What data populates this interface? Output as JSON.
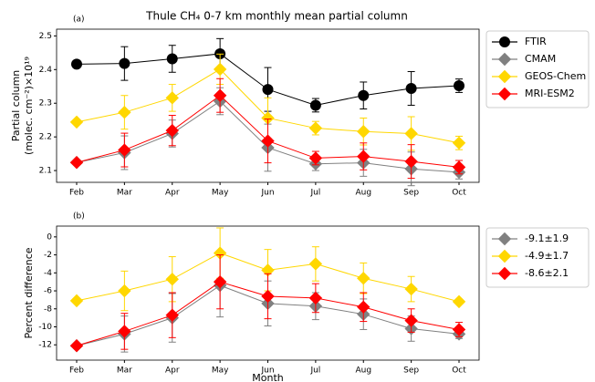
{
  "chart_data": [
    {
      "type": "line",
      "title": "Thule CH₄ 0-7 km monthly mean partial column",
      "panel_label": "(a)",
      "ylabel": [
        "Partial column",
        "(molec. cm⁻²)×10¹⁹"
      ],
      "categories": [
        "Feb",
        "Mar",
        "Apr",
        "May",
        "Jun",
        "Jul",
        "Aug",
        "Sep",
        "Oct"
      ],
      "ylim": [
        2.065,
        2.52
      ],
      "yticks": [
        2.1,
        2.2,
        2.3,
        2.4,
        2.5
      ],
      "legend": "outside right",
      "series": [
        {
          "name": "FTIR",
          "color": "#000000",
          "marker": "circle",
          "values": [
            2.416,
            2.418,
            2.432,
            2.447,
            2.341,
            2.294,
            2.323,
            2.344,
            2.352
          ],
          "errors": [
            0,
            0.05,
            0.04,
            0.045,
            0.065,
            0.02,
            0.04,
            0.05,
            0.02
          ]
        },
        {
          "name": "CMAM",
          "color": "#808080",
          "marker": "diamond",
          "values": [
            2.124,
            2.153,
            2.21,
            2.306,
            2.168,
            2.12,
            2.123,
            2.105,
            2.095
          ],
          "errors": [
            0,
            0.05,
            0.04,
            0.04,
            0.07,
            0.02,
            0.04,
            0.05,
            0.02
          ]
        },
        {
          "name": "GEOS-Chem",
          "color": "#ffd700",
          "marker": "diamond",
          "values": [
            2.244,
            2.273,
            2.316,
            2.401,
            2.256,
            2.226,
            2.216,
            2.21,
            2.182
          ],
          "errors": [
            0,
            0.05,
            0.04,
            0.045,
            0.06,
            0.02,
            0.04,
            0.05,
            0.02
          ]
        },
        {
          "name": "MRI-ESM2",
          "color": "#ff0000",
          "marker": "diamond",
          "values": [
            2.124,
            2.161,
            2.219,
            2.323,
            2.188,
            2.137,
            2.142,
            2.127,
            2.11
          ],
          "errors": [
            0,
            0.05,
            0.045,
            0.05,
            0.065,
            0.02,
            0.04,
            0.05,
            0.02
          ]
        }
      ]
    },
    {
      "type": "line",
      "panel_label": "(b)",
      "ylabel": [
        "Percent difference"
      ],
      "xlabel": "Month",
      "categories": [
        "Feb",
        "Mar",
        "Apr",
        "May",
        "Jun",
        "Jul",
        "Aug",
        "Sep",
        "Oct"
      ],
      "ylim": [
        -13.7,
        1.2
      ],
      "yticks": [
        0,
        -2,
        -4,
        -6,
        -8,
        -10,
        -12
      ],
      "legend": "outside right",
      "series": [
        {
          "name": "-9.1±1.9",
          "color": "#808080",
          "marker": "diamond",
          "values": [
            -12.1,
            -10.8,
            -9.0,
            -5.4,
            -7.4,
            -7.7,
            -8.6,
            -10.2,
            -10.8
          ],
          "errors": [
            0,
            2,
            2.7,
            3.5,
            2.5,
            1.5,
            1.7,
            1.4,
            0.5
          ]
        },
        {
          "name": "-4.9±1.7",
          "color": "#ffd700",
          "marker": "diamond",
          "values": [
            -7.1,
            -6.0,
            -4.7,
            -1.8,
            -3.7,
            -3.0,
            -4.6,
            -5.8,
            -7.2
          ],
          "errors": [
            0,
            2.2,
            2.5,
            2.8,
            2.3,
            1.9,
            1.7,
            1.4,
            0
          ]
        },
        {
          "name": "-8.6±2.1",
          "color": "#ff0000",
          "marker": "diamond",
          "values": [
            -12.1,
            -10.5,
            -8.7,
            -5.0,
            -6.6,
            -6.8,
            -7.8,
            -9.3,
            -10.3
          ],
          "errors": [
            0,
            2,
            2.5,
            3,
            2.5,
            1.6,
            1.6,
            1.3,
            0.8
          ]
        }
      ]
    }
  ]
}
